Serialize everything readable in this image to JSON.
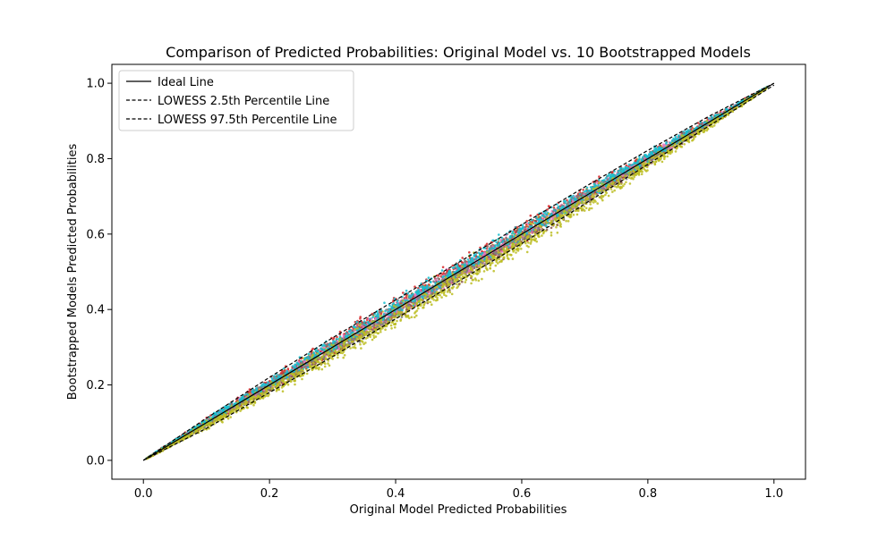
{
  "chart_data": {
    "type": "scatter",
    "title": "Comparison of Predicted Probabilities: Original Model vs. 10 Bootstrapped Models",
    "xlabel": "Original Model Predicted Probabilities",
    "ylabel": "Bootstrapped Models Predicted Probabilities",
    "xlim": [
      -0.05,
      1.05
    ],
    "ylim": [
      -0.05,
      1.05
    ],
    "xticks": [
      0.0,
      0.2,
      0.4,
      0.6,
      0.8,
      1.0
    ],
    "yticks": [
      0.0,
      0.2,
      0.4,
      0.6,
      0.8,
      1.0
    ],
    "xtick_labels": [
      "0.0",
      "0.2",
      "0.4",
      "0.6",
      "0.8",
      "1.0"
    ],
    "ytick_labels": [
      "0.0",
      "0.2",
      "0.4",
      "0.6",
      "0.8",
      "1.0"
    ],
    "grid": false,
    "legend_position": "top-left",
    "legend": [
      {
        "label": "Ideal Line",
        "style": "solid",
        "color": "#000000"
      },
      {
        "label": "LOWESS 2.5th Percentile Line",
        "style": "dashed",
        "color": "#000000"
      },
      {
        "label": "LOWESS 97.5th Percentile Line",
        "style": "dashed",
        "color": "#000000"
      }
    ],
    "lines": [
      {
        "name": "Ideal Line",
        "style": "solid",
        "x": [
          0.0,
          1.0
        ],
        "y": [
          0.0,
          1.0
        ]
      },
      {
        "name": "LOWESS 2.5th Percentile Line",
        "style": "dashed",
        "x": [
          0.0,
          0.1,
          0.2,
          0.3,
          0.4,
          0.5,
          0.6,
          0.7,
          0.8,
          0.9,
          1.0
        ],
        "y": [
          0.0,
          0.085,
          0.18,
          0.275,
          0.375,
          0.475,
          0.575,
          0.68,
          0.785,
          0.89,
          0.995
        ]
      },
      {
        "name": "LOWESS 97.5th Percentile Line",
        "style": "dashed",
        "x": [
          0.0,
          0.1,
          0.2,
          0.3,
          0.4,
          0.5,
          0.6,
          0.7,
          0.8,
          0.9,
          1.0
        ],
        "y": [
          0.0,
          0.112,
          0.22,
          0.325,
          0.425,
          0.525,
          0.625,
          0.725,
          0.822,
          0.915,
          1.0
        ]
      }
    ],
    "scatter_series": [
      {
        "color": "#bcbd22",
        "offset": -0.015,
        "spread": 0.032
      },
      {
        "color": "#d62728",
        "offset": 0.006,
        "spread": 0.026
      },
      {
        "color": "#8c564b",
        "offset": -0.005,
        "spread": 0.024
      },
      {
        "color": "#e377c2",
        "offset": 0.0,
        "spread": 0.018
      },
      {
        "color": "#7f7f7f",
        "offset": -0.004,
        "spread": 0.02
      },
      {
        "color": "#17becf",
        "offset": 0.008,
        "spread": 0.022
      },
      {
        "color": "#bcbd22",
        "offset": -0.02,
        "spread": 0.03
      }
    ]
  }
}
